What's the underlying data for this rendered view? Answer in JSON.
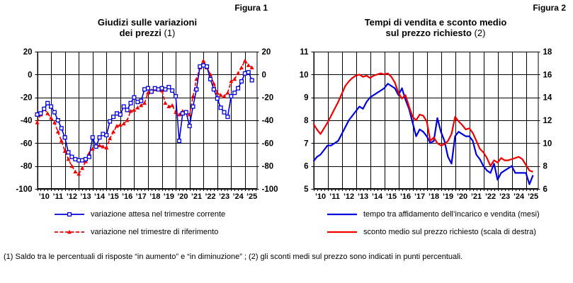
{
  "figures": [
    {
      "figure_label": "Figura 1",
      "title_lines": [
        "Giudizi sulle variazioni",
        "dei prezzi"
      ],
      "title_note": "(1)",
      "legend": [
        {
          "label": "variazione attesa nel trimestre corrente"
        },
        {
          "label": "variazione nel trimestre di riferimento"
        }
      ]
    },
    {
      "figure_label": "Figura 2",
      "title_lines": [
        "Tempi di vendita e sconto medio",
        "sul prezzo richiesto"
      ],
      "title_note": "(2)",
      "legend": [
        {
          "label": "tempo tra affidamento dell’incarico e vendita (mesi)"
        },
        {
          "label": "sconto medio sul prezzo richiesto (scala di destra)"
        }
      ]
    }
  ],
  "footnote": "(1) Saldo tra le percentuali di risposte “in aumento” e “in diminuzione” ; (2) gli sconti medi sul prezzo sono indicati in punti percentuali.",
  "colors": {
    "series_blue": "#0000dd",
    "series_red": "#ee0000",
    "grid": "#000000",
    "background": "#ffffff"
  },
  "chart_data": [
    {
      "type": "line",
      "title": "Giudizi sulle variazioni dei prezzi (1)",
      "x_unit": "quarterly",
      "x_start": "2010Q1",
      "x_end": "2025Q3",
      "x_tick_labels": [
        "’10",
        "’11",
        "’12",
        "’13",
        "’14",
        "’15",
        "’16",
        "’17",
        "’18",
        "’19",
        "’20",
        "’21",
        "’22",
        "’23",
        "’24",
        "’25"
      ],
      "grid": true,
      "y_axis_left": {
        "min": -100,
        "max": 20,
        "step": 20
      },
      "y_axis_right": {
        "min": -100,
        "max": 20,
        "step": 20
      },
      "series": [
        {
          "name": "variazione nel trimestre di riferimento",
          "axis": "left",
          "color": "#ee0000",
          "line": "dashed",
          "marker": "triangle-filled",
          "values": [
            -42,
            -35,
            -30,
            -34,
            -38,
            -42,
            -50,
            -58,
            -67,
            -74,
            -80,
            -85,
            -87,
            -82,
            -76,
            -69,
            -65,
            -63,
            -62,
            -63,
            -64,
            -56,
            -50,
            -45,
            -44,
            -43,
            -40,
            -32,
            -31,
            -29,
            -27,
            -25,
            -16,
            -14,
            -13,
            -13,
            -14,
            -25,
            -28,
            -27,
            -33,
            -35,
            -32,
            -33,
            -35,
            -19,
            -4,
            6,
            12,
            6,
            0,
            -8,
            -16,
            -18,
            -19,
            -16,
            -6,
            -4,
            1,
            6,
            12,
            8,
            6
          ]
        },
        {
          "name": "variazione attesa nel trimestre corrente",
          "axis": "left",
          "color": "#0000dd",
          "line": "solid",
          "marker": "square-open",
          "values": [
            -35,
            -34,
            -30,
            -25,
            -28,
            -33,
            -40,
            -47,
            -55,
            -68,
            -72,
            -74,
            -75,
            -75,
            -74,
            -72,
            -55,
            -63,
            -55,
            -52,
            -53,
            -41,
            -37,
            -34,
            -35,
            -28,
            -31,
            -25,
            -20,
            -24,
            -23,
            -13,
            -12,
            -15,
            -12,
            -13,
            -12,
            -13,
            -11,
            -14,
            -19,
            -58,
            -34,
            -33,
            -45,
            -28,
            -13,
            7,
            8,
            7,
            -4,
            -13,
            -21,
            -29,
            -33,
            -37,
            -19,
            -16,
            -12,
            -6,
            1,
            2,
            -5
          ]
        }
      ]
    },
    {
      "type": "line",
      "title": "Tempi di vendita e sconto medio sul prezzo richiesto (2)",
      "x_unit": "quarterly",
      "x_start": "2010Q1",
      "x_end": "2025Q3",
      "x_tick_labels": [
        "’10",
        "’11",
        "’12",
        "’13",
        "’14",
        "’15",
        "’16",
        "’17",
        "’18",
        "’19",
        "’20",
        "’21",
        "’22",
        "’23",
        "’24",
        "’25"
      ],
      "grid": true,
      "y_axis_left": {
        "min": 5,
        "max": 11,
        "step": 1
      },
      "y_axis_right": {
        "min": 6,
        "max": 18,
        "step": 2
      },
      "series": [
        {
          "name": "tempo tra affidamento dell’incarico e vendita (mesi)",
          "axis": "left",
          "color": "#0000dd",
          "line": "solid",
          "marker": "none",
          "values": [
            6.2,
            6.4,
            6.5,
            6.7,
            6.9,
            6.9,
            7.0,
            7.1,
            7.4,
            7.7,
            8.0,
            8.2,
            8.4,
            8.6,
            8.5,
            8.8,
            9.0,
            9.1,
            9.2,
            9.3,
            9.4,
            9.6,
            9.5,
            9.4,
            9.1,
            9.4,
            8.9,
            8.5,
            7.9,
            7.3,
            7.6,
            7.5,
            7.3,
            7.0,
            7.1,
            8.1,
            7.5,
            7.1,
            6.4,
            6.1,
            7.3,
            7.5,
            7.4,
            7.3,
            7.3,
            7.1,
            6.5,
            6.3,
            6.0,
            5.8,
            5.7,
            6.1,
            5.4,
            5.7,
            5.8,
            5.9,
            6.0,
            5.7,
            5.7,
            5.7,
            5.7,
            5.2,
            5.6
          ]
        },
        {
          "name": "sconto medio sul prezzo richiesto (scala di destra)",
          "axis": "right",
          "color": "#ee0000",
          "line": "solid",
          "marker": "none",
          "values": [
            11.7,
            11.2,
            10.8,
            11.3,
            11.8,
            12.4,
            13.0,
            13.6,
            14.3,
            15.0,
            15.4,
            15.7,
            15.9,
            16.0,
            15.8,
            15.9,
            15.7,
            15.9,
            16.0,
            16.1,
            16.0,
            16.1,
            15.8,
            15.3,
            14.4,
            13.9,
            14.2,
            13.2,
            12.3,
            12.0,
            12.5,
            12.4,
            11.9,
            10.2,
            10.5,
            10.0,
            9.8,
            9.9,
            10.2,
            10.8,
            12.3,
            11.9,
            11.6,
            11.2,
            11.3,
            10.9,
            10.2,
            9.5,
            9.2,
            8.7,
            8.0,
            8.5,
            8.3,
            8.7,
            8.5,
            8.5,
            8.6,
            8.7,
            8.8,
            8.6,
            8.1,
            7.6,
            7.5
          ]
        }
      ]
    }
  ]
}
